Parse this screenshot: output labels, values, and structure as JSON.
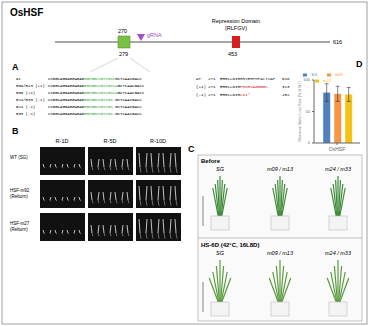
{
  "title": "OsHSF",
  "gene_diagram": {
    "domain_start": 270,
    "domain_end": 279,
    "gRNA": "gRNA",
    "repression_domain": "Repression Domain",
    "motif": "(RLFGV)",
    "repression_position": 453,
    "length": 616
  },
  "panel_A": {
    "label": "A",
    "sequences": [
      {
        "name": "wt",
        "seq": [
          "CCGGCAGGAGGAGAG",
          "GGCGGCCGTCGCC",
          "GCTCAACGACC"
        ]
      },
      {
        "name": "m09/m13 (+1)",
        "seq": [
          "CCGGCAGGAGGAGAG",
          "GGCGGCCGTCGCCA",
          "GCTCAACGACC"
        ]
      },
      {
        "name": "m09 (+1)",
        "seq": [
          "CCGGCAGGAGGAGAG",
          "GGCGGCCGTCGCCA",
          "GCTCAACGACC"
        ]
      },
      {
        "name": "m24/m33 (-1)",
        "seq": [
          "CCGGCAGGAGGAGAG",
          "GGCGGCCGTCGC-",
          "GCTCAACGACC"
        ]
      },
      {
        "name": "m24 (-1)",
        "seq": [
          "CCGGCAGGAGGAGAG",
          "GGCGGCCGTCGC-",
          "GCTCAACGACC"
        ]
      },
      {
        "name": "m33 (-1)",
        "seq": [
          "CCGGCAGGAGGAGAG",
          "GGCGGCCGTCGC-",
          "GCTCAACGACC"
        ]
      }
    ],
    "alignments": [
      {
        "tag": "WT",
        "start": 271,
        "seq": [
          "ERRLLDIR",
          "HHVERPMPALTVAP"
        ],
        "end": 616
      },
      {
        "tag": "(+1)",
        "start": 271,
        "seq": [
          "ERRLLDIR",
          "PRDRVAGGGGS"
        ],
        "end": 323
      },
      {
        "tag": "(-1)",
        "start": 271,
        "seq": [
          "ERRLLDIR",
          "LDI*"
        ],
        "end": 282
      }
    ]
  },
  "panel_B": {
    "label": "B",
    "columns": [
      "R-1D",
      "R-5D",
      "R-10D"
    ],
    "rows": [
      [
        "WT (SG)"
      ],
      [
        "HSF-m92",
        "(Reborn)"
      ],
      [
        "HSF-m27",
        "(Reborn)"
      ]
    ]
  },
  "panel_C": {
    "label": "C",
    "panels": [
      {
        "title": "Before",
        "plants": [
          "SG",
          "m09 / m13",
          "m24 / m33"
        ]
      },
      {
        "title": "HS-6D (42°C, 16L8D)",
        "plants": [
          "SG",
          "m09 / m13",
          "m24 / m33"
        ]
      }
    ]
  },
  "panel_D": {
    "label": "D"
  },
  "chart_data": {
    "type": "bar",
    "y_label": "Maximum Water Loss Rate (% of WT)",
    "categories": [
      "OsHSF"
    ],
    "series": [
      {
        "name": "SG",
        "color": "#4f81bd",
        "values": [
          80
        ],
        "errors": [
          14
        ]
      },
      {
        "name": "m09",
        "color": "#f79646",
        "values": [
          78
        ],
        "errors": [
          12
        ]
      },
      {
        "name": "m24",
        "color": "#f2c314",
        "values": [
          77
        ],
        "errors": [
          11
        ]
      }
    ],
    "ylim": [
      0,
      100
    ],
    "yticks": [
      0,
      50,
      100
    ],
    "legend": "top"
  }
}
